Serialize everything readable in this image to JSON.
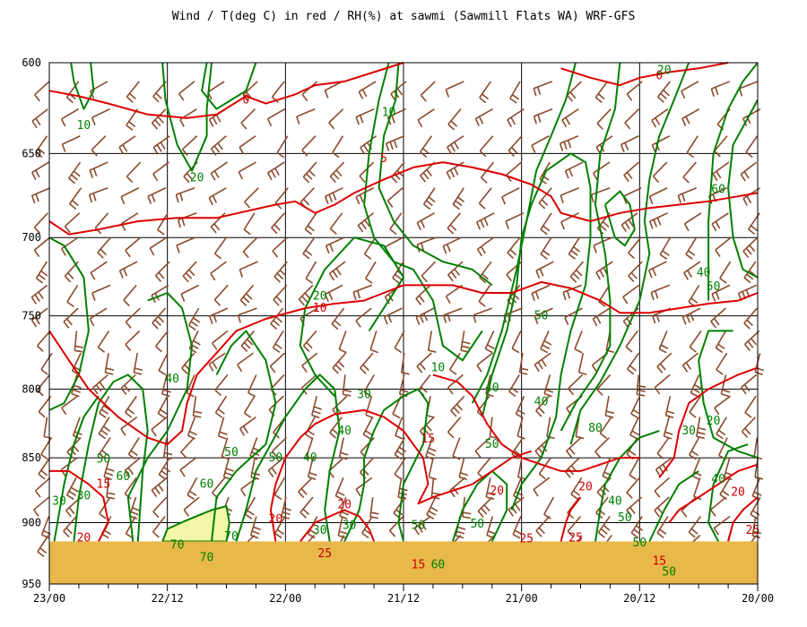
{
  "chart_data": {
    "type": "line",
    "title": "Wind / T(deg C) in red / RH(%) at sawmi (Sawmill Flats WA)  WRF-GFS",
    "y_axis": {
      "quantity": "pressure (mb)",
      "ticks": [
        600,
        650,
        700,
        750,
        800,
        850,
        900,
        950
      ],
      "range": [
        600,
        950
      ],
      "inverted": true,
      "scale": "log"
    },
    "x_axis": {
      "ticks": [
        "23/00",
        "22/12",
        "22/00",
        "21/12",
        "21/00",
        "20/12",
        "20/00"
      ],
      "range_hours": [
        0,
        72
      ],
      "time_direction": "decreasing to the right"
    },
    "grid": true,
    "terrain": {
      "color": "#e8b84a",
      "surface_pressure_mb": 915
    },
    "colors": {
      "temperature": "#dd0000",
      "relative_humidity": "#008000",
      "wind_barb": "#8b4a2b",
      "rh_high_fill": "#f3f7a8",
      "terrain": "#e8b84a"
    },
    "temperature_labels": [
      {
        "text": "0",
        "t": 20,
        "p": 620
      },
      {
        "text": "0",
        "t": 62,
        "p": 607
      },
      {
        "text": "5",
        "t": 34,
        "p": 653
      },
      {
        "text": "10",
        "t": 27.5,
        "p": 745
      },
      {
        "text": "15",
        "t": 38.5,
        "p": 836
      },
      {
        "text": "15",
        "t": 5.5,
        "p": 870
      },
      {
        "text": "20",
        "t": 3.5,
        "p": 912
      },
      {
        "text": "20",
        "t": 23,
        "p": 897
      },
      {
        "text": "20",
        "t": 30,
        "p": 886
      },
      {
        "text": "20",
        "t": 45.5,
        "p": 875
      },
      {
        "text": "20",
        "t": 54.5,
        "p": 872
      },
      {
        "text": "20",
        "t": 70,
        "p": 876
      },
      {
        "text": "25",
        "t": 28,
        "p": 925
      },
      {
        "text": "25",
        "t": 48.5,
        "p": 913
      },
      {
        "text": "25",
        "t": 53.5,
        "p": 912
      },
      {
        "text": "25",
        "t": 71.5,
        "p": 906
      },
      {
        "text": "15",
        "t": 37.5,
        "p": 934
      },
      {
        "text": "15",
        "t": 62,
        "p": 931
      }
    ],
    "rh_labels": [
      {
        "text": "10",
        "t": 3.5,
        "p": 634
      },
      {
        "text": "20",
        "t": 15,
        "p": 664
      },
      {
        "text": "10",
        "t": 34.5,
        "p": 627
      },
      {
        "text": "20",
        "t": 62.5,
        "p": 604
      },
      {
        "text": "60",
        "t": 68,
        "p": 671
      },
      {
        "text": "40",
        "t": 66.5,
        "p": 722
      },
      {
        "text": "50",
        "t": 67.5,
        "p": 731
      },
      {
        "text": "20",
        "t": 27.5,
        "p": 737
      },
      {
        "text": "50",
        "t": 50,
        "p": 750
      },
      {
        "text": "10",
        "t": 39.5,
        "p": 785
      },
      {
        "text": "40",
        "t": 12.5,
        "p": 793
      },
      {
        "text": "30",
        "t": 32,
        "p": 804
      },
      {
        "text": "40",
        "t": 45,
        "p": 799
      },
      {
        "text": "40",
        "t": 50,
        "p": 809
      },
      {
        "text": "80",
        "t": 55.5,
        "p": 828
      },
      {
        "text": "30",
        "t": 65,
        "p": 830
      },
      {
        "text": "20",
        "t": 67.5,
        "p": 823
      },
      {
        "text": "40",
        "t": 30,
        "p": 830
      },
      {
        "text": "50",
        "t": 45,
        "p": 840
      },
      {
        "text": "50",
        "t": 18.5,
        "p": 846
      },
      {
        "text": "50",
        "t": 23,
        "p": 850
      },
      {
        "text": "40",
        "t": 26.5,
        "p": 850
      },
      {
        "text": "50",
        "t": 5.5,
        "p": 851
      },
      {
        "text": "60",
        "t": 7.5,
        "p": 864
      },
      {
        "text": "60",
        "t": 16,
        "p": 870
      },
      {
        "text": "40",
        "t": 57.5,
        "p": 883
      },
      {
        "text": "50",
        "t": 58.5,
        "p": 896
      },
      {
        "text": "40",
        "t": 68,
        "p": 866
      },
      {
        "text": "50",
        "t": 43.5,
        "p": 901
      },
      {
        "text": "50",
        "t": 37.5,
        "p": 902
      },
      {
        "text": "30",
        "t": 1,
        "p": 883
      },
      {
        "text": "30",
        "t": 3.5,
        "p": 879
      },
      {
        "text": "30",
        "t": 27.5,
        "p": 906
      },
      {
        "text": "30",
        "t": 30.5,
        "p": 902
      },
      {
        "text": "70",
        "t": 13,
        "p": 918
      },
      {
        "text": "70",
        "t": 16,
        "p": 928
      },
      {
        "text": "70",
        "t": 18.5,
        "p": 911
      },
      {
        "text": "50",
        "t": 60,
        "p": 916
      },
      {
        "text": "50",
        "t": 63,
        "p": 940
      },
      {
        "text": "60",
        "t": 39.5,
        "p": 934
      }
    ]
  }
}
